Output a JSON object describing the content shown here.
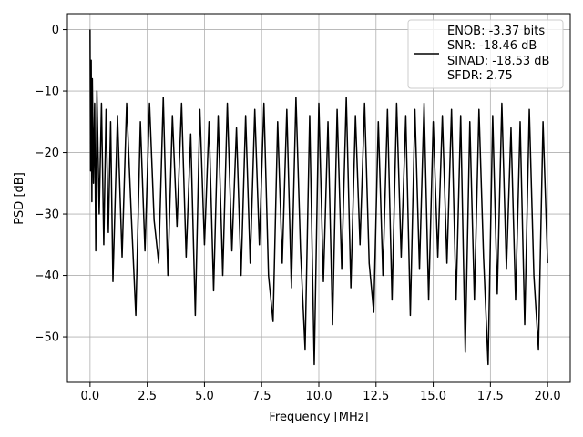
{
  "chart_data": {
    "type": "line",
    "title": "",
    "xlabel": "Frequency [MHz]",
    "ylabel": "PSD [dB]",
    "xlim": [
      -0.99,
      20.99
    ],
    "ylim": [
      -57.4,
      2.6
    ],
    "grid": true,
    "legend_placement": "top-right",
    "line_color": "#000000",
    "xticks": [
      0.0,
      2.5,
      5.0,
      7.5,
      10.0,
      12.5,
      15.0,
      17.5,
      20.0
    ],
    "xtick_labels": [
      "0.0",
      "2.5",
      "5.0",
      "7.5",
      "10.0",
      "12.5",
      "15.0",
      "17.5",
      "20.0"
    ],
    "yticks": [
      0,
      -10,
      -20,
      -30,
      -40,
      -50
    ],
    "ytick_labels": [
      "0",
      "−10",
      "−20",
      "−30",
      "−40",
      "−50"
    ],
    "legend": {
      "lines": [
        "ENOB: -3.37 bits",
        "SNR: -18.46 dB",
        "SINAD: -18.53 dB",
        "SFDR: 2.75"
      ]
    },
    "series": [
      {
        "x": [
          0.0,
          0.02,
          0.05,
          0.08,
          0.1,
          0.15,
          0.2,
          0.25,
          0.3,
          0.4,
          0.5,
          0.6,
          0.7,
          0.8,
          0.9,
          1.0,
          1.2,
          1.4,
          1.6,
          1.8,
          2.0,
          2.2,
          2.4,
          2.6,
          2.8,
          3.0,
          3.2,
          3.4,
          3.6,
          3.8,
          4.0,
          4.2,
          4.4,
          4.6,
          4.8,
          5.0,
          5.2,
          5.4,
          5.6,
          5.8,
          6.0,
          6.2,
          6.4,
          6.6,
          6.8,
          7.0,
          7.2,
          7.4,
          7.6,
          7.8,
          8.0,
          8.2,
          8.4,
          8.6,
          8.8,
          9.0,
          9.2,
          9.4,
          9.6,
          9.8,
          10.0,
          10.2,
          10.4,
          10.6,
          10.8,
          11.0,
          11.2,
          11.4,
          11.6,
          11.8,
          12.0,
          12.2,
          12.4,
          12.6,
          12.8,
          13.0,
          13.2,
          13.4,
          13.6,
          13.8,
          14.0,
          14.2,
          14.4,
          14.6,
          14.8,
          15.0,
          15.2,
          15.4,
          15.6,
          15.8,
          16.0,
          16.2,
          16.4,
          16.6,
          16.8,
          17.0,
          17.2,
          17.4,
          17.6,
          17.8,
          18.0,
          18.2,
          18.4,
          18.6,
          18.8,
          19.0,
          19.2,
          19.4,
          19.6,
          19.8,
          20.0
        ],
        "y": [
          0.0,
          -23.0,
          -5.0,
          -28.0,
          -8.0,
          -25.0,
          -12.0,
          -36.0,
          -10.0,
          -30.0,
          -12.0,
          -35.0,
          -13.0,
          -33.0,
          -15.0,
          -41.0,
          -14.0,
          -37.0,
          -12.0,
          -30.0,
          -46.5,
          -15.0,
          -36.0,
          -12.0,
          -31.0,
          -38.0,
          -11.0,
          -40.0,
          -14.0,
          -32.0,
          -12.0,
          -37.0,
          -17.0,
          -46.5,
          -13.0,
          -35.0,
          -15.0,
          -42.5,
          -14.0,
          -40.0,
          -12.0,
          -36.0,
          -16.0,
          -40.0,
          -14.0,
          -38.0,
          -13.0,
          -35.0,
          -12.0,
          -40.0,
          -47.5,
          -15.0,
          -38.0,
          -13.0,
          -42.0,
          -11.0,
          -36.0,
          -52.0,
          -14.0,
          -54.5,
          -12.0,
          -41.0,
          -15.0,
          -48.0,
          -13.0,
          -39.0,
          -11.0,
          -42.0,
          -14.0,
          -35.0,
          -12.0,
          -38.0,
          -46.0,
          -15.0,
          -40.0,
          -13.0,
          -44.0,
          -12.0,
          -37.0,
          -14.0,
          -46.5,
          -13.0,
          -39.0,
          -12.0,
          -44.0,
          -15.0,
          -37.0,
          -14.0,
          -38.0,
          -13.0,
          -44.0,
          -14.0,
          -52.5,
          -15.0,
          -44.0,
          -13.0,
          -37.0,
          -54.5,
          -14.0,
          -43.0,
          -12.0,
          -39.0,
          -16.0,
          -44.0,
          -15.0,
          -48.0,
          -13.0,
          -40.0,
          -52.0,
          -15.0,
          -38.0
        ]
      }
    ]
  }
}
